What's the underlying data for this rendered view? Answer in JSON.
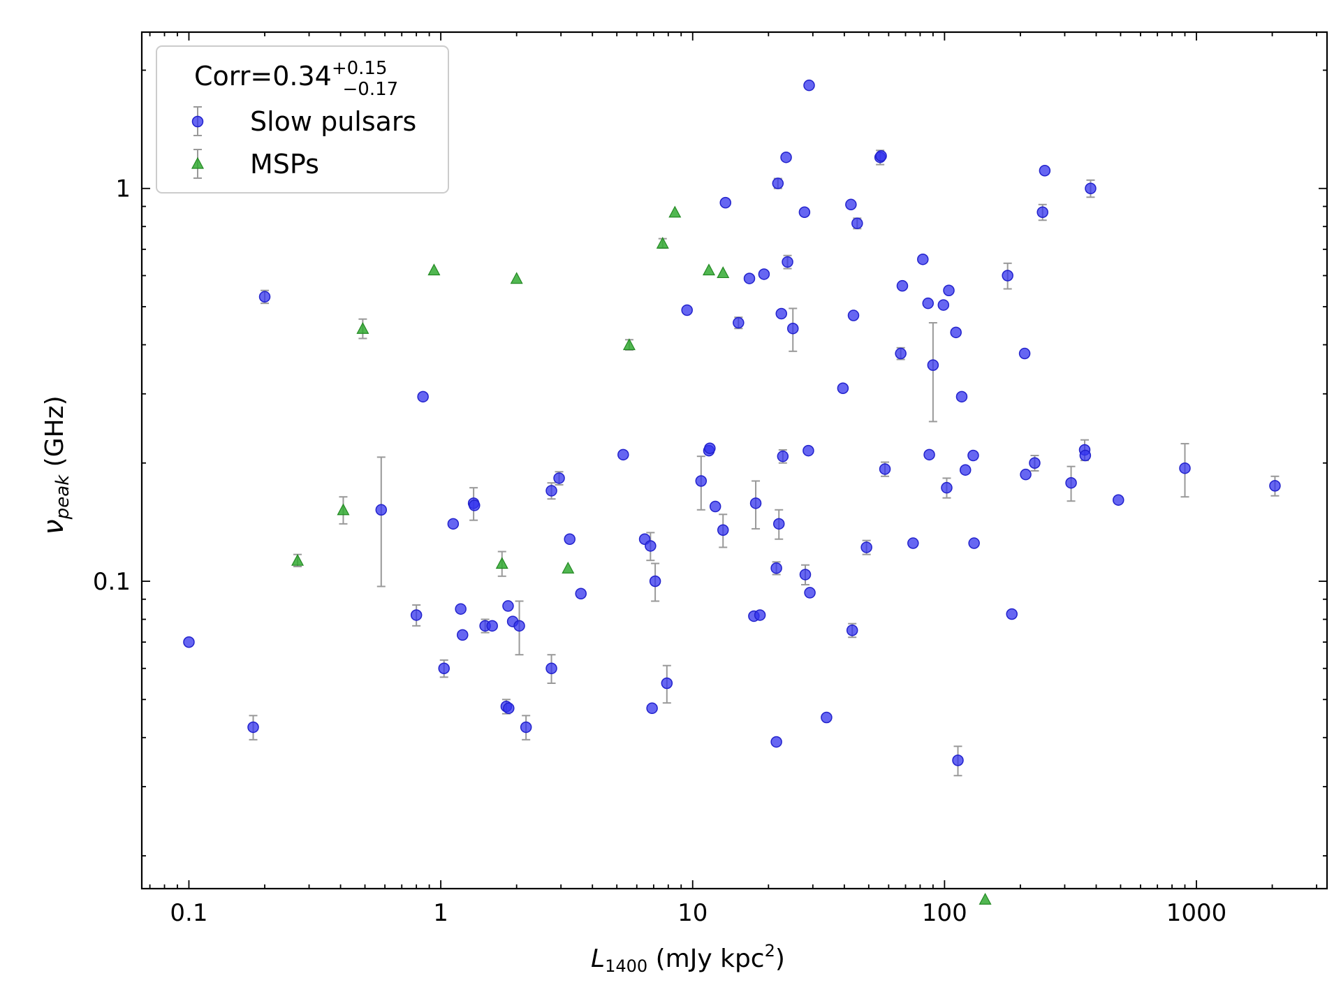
{
  "chart_data": {
    "type": "scatter",
    "title": "",
    "xlabel": {
      "main": "L",
      "sub": "1400",
      "rest": " (mJy kpc",
      "sup": "2",
      "close": ")"
    },
    "ylabel": {
      "main": "ν",
      "sub": "peak",
      "rest": " (GHz)"
    },
    "x_scale": "log",
    "y_scale": "log",
    "xlim": [
      0.065,
      3300
    ],
    "ylim": [
      0.0165,
      2.5
    ],
    "x_ticks": [
      {
        "value": 0.1,
        "label": "0.1"
      },
      {
        "value": 1,
        "label": "1"
      },
      {
        "value": 10,
        "label": "10"
      },
      {
        "value": 100,
        "label": "100"
      },
      {
        "value": 1000,
        "label": "1000"
      }
    ],
    "y_ticks": [
      {
        "value": 0.1,
        "label": "0.1"
      },
      {
        "value": 1,
        "label": "1"
      }
    ],
    "grid": false,
    "legend": {
      "placement": "top-left",
      "corr_prefix": "Corr=0.34",
      "corr_plus": "+0.15",
      "corr_minus": "−0.17"
    },
    "series": [
      {
        "name": "Slow pulsars",
        "marker": "circle",
        "color": "#3333ee",
        "points": [
          {
            "x": 0.1,
            "y": 0.07
          },
          {
            "x": 0.18,
            "y": 0.0425,
            "yerr": 0.003
          },
          {
            "x": 0.2,
            "y": 0.53,
            "yerr": 0.02
          },
          {
            "x": 0.58,
            "y": 0.152,
            "yerr": 0.055
          },
          {
            "x": 0.8,
            "y": 0.082,
            "yerr": 0.005
          },
          {
            "x": 0.85,
            "y": 0.295
          },
          {
            "x": 1.03,
            "y": 0.06,
            "yerr": 0.003
          },
          {
            "x": 1.12,
            "y": 0.14
          },
          {
            "x": 1.2,
            "y": 0.085
          },
          {
            "x": 1.22,
            "y": 0.073
          },
          {
            "x": 1.5,
            "y": 0.077,
            "yerr": 0.003
          },
          {
            "x": 1.6,
            "y": 0.077
          },
          {
            "x": 1.35,
            "y": 0.158,
            "yerr": 0.015
          },
          {
            "x": 1.36,
            "y": 0.156
          },
          {
            "x": 1.82,
            "y": 0.048,
            "yerr": 0.002
          },
          {
            "x": 1.86,
            "y": 0.0475
          },
          {
            "x": 1.85,
            "y": 0.0865
          },
          {
            "x": 1.93,
            "y": 0.079
          },
          {
            "x": 2.05,
            "y": 0.077,
            "yerr": 0.012
          },
          {
            "x": 2.18,
            "y": 0.0425,
            "yerr": 0.003
          },
          {
            "x": 2.75,
            "y": 0.06,
            "yerr": 0.005
          },
          {
            "x": 2.75,
            "y": 0.17,
            "yerr": 0.008
          },
          {
            "x": 2.95,
            "y": 0.183,
            "yerr": 0.007
          },
          {
            "x": 3.25,
            "y": 0.128
          },
          {
            "x": 3.6,
            "y": 0.093
          },
          {
            "x": 5.3,
            "y": 0.21
          },
          {
            "x": 6.45,
            "y": 0.128
          },
          {
            "x": 6.8,
            "y": 0.123,
            "yerr": 0.01
          },
          {
            "x": 6.9,
            "y": 0.0475
          },
          {
            "x": 7.1,
            "y": 0.1,
            "yerr": 0.011
          },
          {
            "x": 7.9,
            "y": 0.055,
            "yerr": 0.006
          },
          {
            "x": 9.5,
            "y": 0.49
          },
          {
            "x": 10.8,
            "y": 0.18,
            "yerr": 0.028
          },
          {
            "x": 11.6,
            "y": 0.215
          },
          {
            "x": 11.7,
            "y": 0.218
          },
          {
            "x": 12.3,
            "y": 0.155
          },
          {
            "x": 13.2,
            "y": 0.135,
            "yerr": 0.013
          },
          {
            "x": 13.5,
            "y": 0.92
          },
          {
            "x": 15.2,
            "y": 0.455,
            "yerr": 0.015
          },
          {
            "x": 16.8,
            "y": 0.59
          },
          {
            "x": 17.5,
            "y": 0.0815
          },
          {
            "x": 17.8,
            "y": 0.158,
            "yerr": 0.022
          },
          {
            "x": 18.5,
            "y": 0.082
          },
          {
            "x": 19.2,
            "y": 0.605
          },
          {
            "x": 21.5,
            "y": 0.039
          },
          {
            "x": 21.5,
            "y": 0.108,
            "yerr": 0.004
          },
          {
            "x": 21.8,
            "y": 1.03,
            "yerr": 0.03
          },
          {
            "x": 22.0,
            "y": 0.14,
            "yerr": 0.012
          },
          {
            "x": 22.5,
            "y": 0.48
          },
          {
            "x": 22.8,
            "y": 0.208,
            "yerr": 0.008
          },
          {
            "x": 23.5,
            "y": 1.2
          },
          {
            "x": 23.8,
            "y": 0.65,
            "yerr": 0.025
          },
          {
            "x": 25.0,
            "y": 0.44,
            "yerr": 0.055
          },
          {
            "x": 27.8,
            "y": 0.87
          },
          {
            "x": 28.0,
            "y": 0.104,
            "yerr": 0.006
          },
          {
            "x": 28.8,
            "y": 0.215
          },
          {
            "x": 29.0,
            "y": 1.83
          },
          {
            "x": 29.2,
            "y": 0.0935
          },
          {
            "x": 34.0,
            "y": 0.045
          },
          {
            "x": 39.5,
            "y": 0.31
          },
          {
            "x": 42.5,
            "y": 0.91
          },
          {
            "x": 43.0,
            "y": 0.075,
            "yerr": 0.003
          },
          {
            "x": 43.5,
            "y": 0.475
          },
          {
            "x": 45.0,
            "y": 0.815,
            "yerr": 0.025
          },
          {
            "x": 55.5,
            "y": 1.2,
            "yerr": 0.05
          },
          {
            "x": 56.0,
            "y": 1.21
          },
          {
            "x": 58.0,
            "y": 0.193,
            "yerr": 0.008
          },
          {
            "x": 49.0,
            "y": 0.122,
            "yerr": 0.005
          },
          {
            "x": 67.0,
            "y": 0.38,
            "yerr": 0.013
          },
          {
            "x": 68.0,
            "y": 0.565
          },
          {
            "x": 75.0,
            "y": 0.125
          },
          {
            "x": 82.0,
            "y": 0.66
          },
          {
            "x": 86.0,
            "y": 0.51
          },
          {
            "x": 87.0,
            "y": 0.21
          },
          {
            "x": 90.0,
            "y": 0.355,
            "yerr": 0.1
          },
          {
            "x": 99.0,
            "y": 0.505
          },
          {
            "x": 102.0,
            "y": 0.173,
            "yerr": 0.01
          },
          {
            "x": 104.0,
            "y": 0.55
          },
          {
            "x": 111.0,
            "y": 0.43
          },
          {
            "x": 113.0,
            "y": 0.035,
            "yerr": 0.003
          },
          {
            "x": 117.0,
            "y": 0.295
          },
          {
            "x": 121.0,
            "y": 0.192
          },
          {
            "x": 130.0,
            "y": 0.209
          },
          {
            "x": 131.0,
            "y": 0.125
          },
          {
            "x": 178.0,
            "y": 0.6,
            "yerr": 0.045
          },
          {
            "x": 185.0,
            "y": 0.0825
          },
          {
            "x": 208.0,
            "y": 0.38
          },
          {
            "x": 210.0,
            "y": 0.187
          },
          {
            "x": 228.0,
            "y": 0.2,
            "yerr": 0.009
          },
          {
            "x": 245.0,
            "y": 0.87,
            "yerr": 0.04
          },
          {
            "x": 250.0,
            "y": 1.11
          },
          {
            "x": 318.0,
            "y": 0.178,
            "yerr": 0.018
          },
          {
            "x": 360.0,
            "y": 0.216,
            "yerr": 0.013
          },
          {
            "x": 362.0,
            "y": 0.209
          },
          {
            "x": 380.0,
            "y": 1.0,
            "yerr": 0.05
          },
          {
            "x": 490.0,
            "y": 0.161
          },
          {
            "x": 900.0,
            "y": 0.194,
            "yerr": 0.03
          },
          {
            "x": 2050.0,
            "y": 0.175,
            "yerr": 0.01
          }
        ]
      },
      {
        "name": "MSPs",
        "marker": "triangle",
        "color": "#33aa33",
        "points": [
          {
            "x": 0.27,
            "y": 0.113,
            "yerr": 0.004
          },
          {
            "x": 0.41,
            "y": 0.152,
            "yerr": 0.012
          },
          {
            "x": 0.49,
            "y": 0.44,
            "yerr": 0.025
          },
          {
            "x": 0.94,
            "y": 0.62
          },
          {
            "x": 1.75,
            "y": 0.111,
            "yerr": 0.008
          },
          {
            "x": 2.0,
            "y": 0.59
          },
          {
            "x": 3.2,
            "y": 0.108
          },
          {
            "x": 5.6,
            "y": 0.4,
            "yerr": 0.012
          },
          {
            "x": 7.6,
            "y": 0.725,
            "yerr": 0.02
          },
          {
            "x": 8.5,
            "y": 0.87
          },
          {
            "x": 11.6,
            "y": 0.62
          },
          {
            "x": 13.2,
            "y": 0.61
          },
          {
            "x": 145.0,
            "y": 0.0155
          }
        ]
      }
    ]
  }
}
